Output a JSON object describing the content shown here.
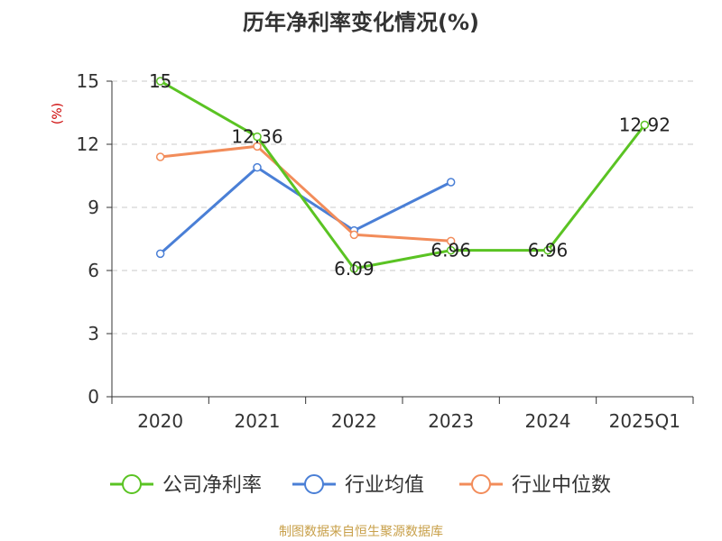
{
  "chart_data": {
    "type": "line",
    "title": "历年净利率变化情况(%)",
    "ylabel": "(%)",
    "xlabel": "",
    "categories": [
      "2020",
      "2021",
      "2022",
      "2023",
      "2024",
      "2025Q1"
    ],
    "ylim": [
      0,
      15
    ],
    "yticks": [
      0,
      3,
      6,
      9,
      12,
      15
    ],
    "grid": "horizontal dashed",
    "legend_position": "bottom",
    "series": [
      {
        "name": "公司净利率",
        "color": "#5ac323",
        "values": [
          15,
          12.36,
          6.09,
          6.96,
          6.96,
          12.92
        ],
        "labels": [
          "15",
          "12.36",
          "6.09",
          "6.96",
          "6.96",
          "12.92"
        ]
      },
      {
        "name": "行业均值",
        "color": "#4a7fd6",
        "values": [
          6.8,
          10.9,
          7.9,
          10.2,
          null,
          null
        ]
      },
      {
        "name": "行业中位数",
        "color": "#f28c5a",
        "values": [
          11.4,
          11.9,
          7.7,
          7.4,
          null,
          null
        ]
      }
    ]
  },
  "footer": {
    "source": "制图数据来自恒生聚源数据库"
  }
}
